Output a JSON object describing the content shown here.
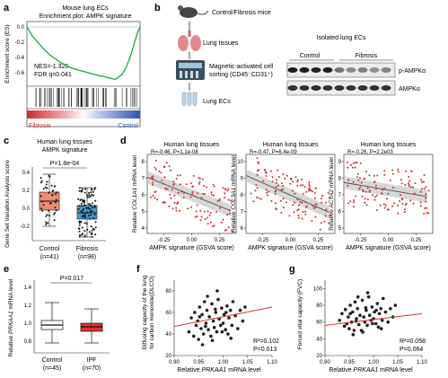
{
  "panels": {
    "a": {
      "letter": "a",
      "title1": "Mouse lung ECs",
      "title2": "Enrichment plot: AMPK signature",
      "ylabel": "Enrichment score (ES)",
      "yticks": [
        "0.0",
        "-0.2",
        "-0.4",
        "-0.6"
      ],
      "nes": "NES=-1.326",
      "fdr": "FDR q=0.041",
      "left_label": "Fibrosis",
      "right_label": "Control",
      "color_left": "#d22b2b",
      "color_right": "#2e55b5",
      "curve_color": "#22b14c"
    },
    "b": {
      "letter": "b",
      "step1": "Control/Fibrosis mice",
      "step2": "Lung tissues",
      "step3a": "Magnetic-activated cell",
      "step3b": "sorting (CD45⁻CD31⁺)",
      "step4": "Lung ECs",
      "blot_title": "Isolated lung ECs",
      "group1": "Control",
      "group2": "Fibrosis",
      "band1": "p-AMPKα",
      "band2": "AMPKα",
      "mouse_icon": "mouse-icon",
      "lung_icon": "lungs-icon",
      "sorter_icon": "cell-sorter-icon",
      "tube_icon": "test-tubes-icon"
    },
    "c": {
      "letter": "c",
      "title1": "Human lung tissues",
      "title2": "AMPK signature",
      "pval": "P=1.8e-04",
      "ylabel": "Gene Set Variation Analysis score",
      "yticks": [
        "0.4",
        "0.2",
        "0.0",
        "-0.2"
      ],
      "cat1": "Control",
      "n1": "(n=41)",
      "cat2": "Fibrosis",
      "n2": "(n=98)",
      "color1": "#f08a72",
      "color2": "#3d9ad1"
    },
    "d": {
      "letter": "d",
      "plots": [
        {
          "title": "Human lung tissues",
          "stats": "R=-0.46, P=1.1e-08",
          "gene": "COL1A1",
          "yticks": [
            "8",
            "7",
            "6",
            "5",
            "4"
          ]
        },
        {
          "title": "Human lung tissues",
          "stats": "R=-0.47, P=6.4e-09",
          "gene": "COL3A1",
          "yticks": [
            "10",
            "9",
            "8",
            "7",
            "6"
          ]
        },
        {
          "title": "Human lung tissues",
          "stats": "R=-0.26, P=2.2e03",
          "gene": "ACTA2",
          "yticks": [
            "9",
            "8",
            "7",
            "6",
            "5"
          ]
        }
      ],
      "ylabel_pre": "Relative ",
      "ylabel_post": " mRNA level",
      "xticks": [
        "-0.25",
        "0.00",
        "0.25"
      ],
      "xlabel": "AMPK signature (GSVA score)"
    },
    "e": {
      "letter": "e",
      "pval": "P=0.017",
      "ylabel_pre": "Relative ",
      "gene": "PRKAA1",
      "ylabel_post": " mRNA level",
      "yticks": [
        "1.4",
        "1.2",
        "1.0",
        "0.8"
      ],
      "cat1": "Control",
      "n1": "(n=45)",
      "cat2": "IPF",
      "n2": "(n=70)",
      "color2": "#e0312f"
    },
    "f": {
      "letter": "f",
      "ylabel1": "Diffusing capacity of the lung",
      "ylabel2": "for carbon monoxide(DLCO)",
      "yticks": [
        "80",
        "60",
        "40",
        "20"
      ],
      "xticks": [
        "0.90",
        "0.95",
        "1.00",
        "1.05",
        "1.10"
      ],
      "xlabel_pre": "Relative ",
      "gene": "PRKAA1",
      "xlabel_post": " mRNA level",
      "r2": "R²=0.102",
      "p": "P=0.013"
    },
    "g": {
      "letter": "g",
      "ylabel": "Forced vital capacity (FVC)",
      "yticks": [
        "100",
        "80",
        "60",
        "40",
        "20"
      ],
      "xticks": [
        "0.90",
        "0.95",
        "1.00",
        "1.05",
        "1.10"
      ],
      "xlabel_pre": "Relative ",
      "gene": "PRKAA1",
      "xlabel_post": " mRNA level",
      "r2": "R²=0.058",
      "p": "P=0.064"
    }
  },
  "chart_data": [
    {
      "type": "line",
      "panel": "a",
      "xlim": [
        0,
        1
      ],
      "ylim": [
        -0.7,
        0.05
      ],
      "x": [
        0,
        0.02,
        0.05,
        0.1,
        0.15,
        0.2,
        0.25,
        0.3,
        0.4,
        0.5,
        0.6,
        0.7,
        0.78,
        0.84,
        0.88,
        0.92,
        0.95,
        0.98,
        1.0
      ],
      "y": [
        0,
        -0.05,
        -0.12,
        -0.2,
        -0.28,
        -0.35,
        -0.4,
        -0.45,
        -0.52,
        -0.56,
        -0.6,
        -0.63,
        -0.66,
        -0.6,
        -0.5,
        -0.35,
        -0.2,
        -0.06,
        0
      ]
    },
    {
      "type": "box",
      "panel": "c",
      "categories": [
        "Control",
        "Fibrosis"
      ],
      "stats": [
        {
          "min": -0.18,
          "q1": 0.0,
          "median": 0.1,
          "q3": 0.2,
          "max": 0.4
        },
        {
          "min": -0.3,
          "q1": -0.1,
          "median": -0.03,
          "q3": 0.05,
          "max": 0.25
        }
      ]
    },
    {
      "type": "scatter",
      "panel": "d-COL1A1",
      "xlabel": "AMPK signature (GSVA score)",
      "xlim": [
        -0.4,
        0.4
      ],
      "ylim": [
        4,
        8.5
      ],
      "trend": {
        "x": [
          -0.4,
          0.35
        ],
        "y": [
          7.2,
          5.3
        ]
      }
    },
    {
      "type": "scatter",
      "panel": "d-COL3A1",
      "xlabel": "AMPK signature (GSVA score)",
      "xlim": [
        -0.4,
        0.4
      ],
      "ylim": [
        6,
        10.5
      ],
      "trend": {
        "x": [
          -0.4,
          0.35
        ],
        "y": [
          9.3,
          7.2
        ]
      }
    },
    {
      "type": "scatter",
      "panel": "d-ACTA2",
      "xlabel": "AMPK signature (GSVA score)",
      "xlim": [
        -0.4,
        0.4
      ],
      "ylim": [
        5,
        9.5
      ],
      "trend": {
        "x": [
          -0.4,
          0.35
        ],
        "y": [
          7.9,
          7.1
        ]
      }
    },
    {
      "type": "box",
      "panel": "e",
      "categories": [
        "Control",
        "IPF"
      ],
      "stats": [
        {
          "min": 0.8,
          "q1": 0.95,
          "median": 1.0,
          "q3": 1.05,
          "max": 1.25
        },
        {
          "min": 0.8,
          "q1": 0.93,
          "median": 0.98,
          "q3": 1.02,
          "max": 1.18
        }
      ]
    },
    {
      "type": "scatter",
      "panel": "f",
      "xlim": [
        0.9,
        1.1
      ],
      "ylim": [
        20,
        90
      ],
      "trend": {
        "x": [
          0.9,
          1.1
        ],
        "y": [
          47,
          65
        ]
      },
      "x": [
        0.93,
        0.935,
        0.94,
        0.942,
        0.945,
        0.948,
        0.95,
        0.952,
        0.955,
        0.957,
        0.96,
        0.962,
        0.965,
        0.967,
        0.97,
        0.972,
        0.975,
        0.977,
        0.98,
        0.982,
        0.985,
        0.987,
        0.99,
        0.992,
        0.995,
        0.997,
        1.0,
        1.002,
        1.005,
        1.008,
        1.01,
        1.012,
        1.015,
        1.018,
        1.02,
        1.025,
        1.03,
        1.035,
        1.04,
        1.045,
        0.958,
        0.968,
        0.978,
        0.988,
        0.998,
        1.006,
        0.952,
        0.964,
        0.984,
        1.016
      ],
      "y": [
        42,
        55,
        38,
        60,
        48,
        52,
        35,
        65,
        45,
        58,
        40,
        70,
        50,
        62,
        44,
        56,
        38,
        68,
        52,
        46,
        60,
        42,
        72,
        54,
        48,
        64,
        50,
        58,
        44,
        66,
        40,
        55,
        62,
        48,
        70,
        57,
        45,
        62,
        52,
        65,
        30,
        75,
        34,
        80,
        42,
        60,
        56,
        47,
        63,
        36
      ]
    },
    {
      "type": "scatter",
      "panel": "g",
      "xlim": [
        0.9,
        1.1
      ],
      "ylim": [
        20,
        110
      ],
      "trend": {
        "x": [
          0.9,
          1.1
        ],
        "y": [
          56,
          70
        ]
      },
      "x": [
        0.93,
        0.935,
        0.94,
        0.942,
        0.945,
        0.948,
        0.95,
        0.952,
        0.955,
        0.957,
        0.96,
        0.962,
        0.965,
        0.967,
        0.97,
        0.972,
        0.975,
        0.977,
        0.98,
        0.982,
        0.985,
        0.987,
        0.99,
        0.992,
        0.995,
        0.997,
        1.0,
        1.002,
        1.005,
        1.008,
        1.01,
        1.012,
        1.015,
        1.018,
        1.02,
        1.025,
        1.03,
        1.035,
        1.04,
        1.045,
        0.958,
        0.968,
        0.978,
        0.988,
        0.998,
        1.006,
        0.952,
        0.964,
        0.984,
        1.016
      ],
      "y": [
        62,
        70,
        55,
        75,
        58,
        66,
        52,
        80,
        60,
        72,
        50,
        84,
        64,
        76,
        57,
        68,
        50,
        86,
        66,
        60,
        74,
        56,
        90,
        68,
        62,
        78,
        64,
        72,
        58,
        82,
        54,
        70,
        76,
        62,
        88,
        72,
        60,
        76,
        66,
        80,
        45,
        90,
        48,
        95,
        58,
        74,
        70,
        61,
        77,
        52
      ]
    }
  ]
}
